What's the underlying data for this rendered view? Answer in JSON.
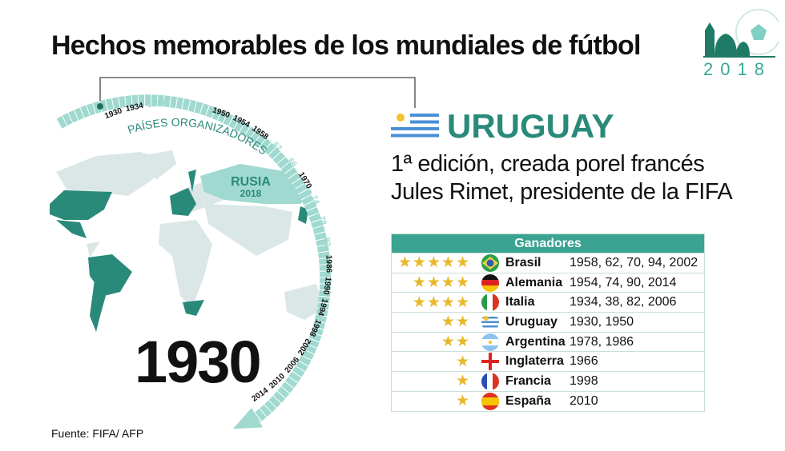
{
  "title": "Hechos memorables de los mundiales de fútbol",
  "logo": {
    "year": "2018"
  },
  "timeline": {
    "label": "PAÍSES ORGANIZADORES",
    "years": [
      {
        "t": "1930",
        "hl": true,
        "y": 1930
      },
      {
        "t": "1934",
        "hl": true,
        "y": 1934
      },
      {
        "t": "1938",
        "hl": false,
        "y": 1938
      },
      {
        "t": "1950",
        "hl": true,
        "y": 1950
      },
      {
        "t": "1954",
        "hl": true,
        "y": 1954
      },
      {
        "t": "1958",
        "hl": true,
        "y": 1958
      },
      {
        "t": "62",
        "hl": false,
        "y": 1962
      },
      {
        "t": "66",
        "hl": false,
        "y": 1966
      },
      {
        "t": "1970",
        "hl": true,
        "y": 1970
      },
      {
        "t": "74",
        "hl": false,
        "y": 1974
      },
      {
        "t": "78",
        "hl": false,
        "y": 1978
      },
      {
        "t": "82",
        "hl": false,
        "y": 1982
      },
      {
        "t": "1986",
        "hl": true,
        "y": 1986
      },
      {
        "t": "1990",
        "hl": true,
        "y": 1990
      },
      {
        "t": "1994",
        "hl": true,
        "y": 1994
      },
      {
        "t": "1998",
        "hl": true,
        "y": 1998
      },
      {
        "t": "2002",
        "hl": true,
        "y": 2002
      },
      {
        "t": "2006",
        "hl": true,
        "y": 2006
      },
      {
        "t": "2010",
        "hl": true,
        "y": 2010
      },
      {
        "t": "2014",
        "hl": true,
        "y": 2014
      }
    ],
    "selected_year": "1930"
  },
  "map": {
    "highlight_label": "RUSIA",
    "highlight_year": "2018"
  },
  "detail": {
    "country": "URUGUAY",
    "description_line1": "1ª edición, creada porel francés",
    "description_line2": "Jules Rimet, presidente de la FIFA"
  },
  "winners": {
    "header": "Ganadores",
    "rows": [
      {
        "stars": 5,
        "name": "Brasil",
        "years": "1958, 62, 70, 94, 2002",
        "flag": "brazil"
      },
      {
        "stars": 4,
        "name": "Alemania",
        "years": "1954, 74, 90, 2014",
        "flag": "germany"
      },
      {
        "stars": 4,
        "name": "Italia",
        "years": "1934, 38, 82, 2006",
        "flag": "italy"
      },
      {
        "stars": 2,
        "name": "Uruguay",
        "years": "1930, 1950",
        "flag": "uruguay"
      },
      {
        "stars": 2,
        "name": "Argentina",
        "years": "1978, 1986",
        "flag": "argentina"
      },
      {
        "stars": 1,
        "name": "Inglaterra",
        "years": "1966",
        "flag": "england"
      },
      {
        "stars": 1,
        "name": "Francia",
        "years": "1998",
        "flag": "france"
      },
      {
        "stars": 1,
        "name": "España",
        "years": "2010",
        "flag": "spain"
      }
    ]
  },
  "source": "Fuente: FIFA/ AFP",
  "colors": {
    "teal_dark": "#2a8a7a",
    "teal_light": "#9fd9d0",
    "land": "#dbe7e7",
    "star": "#e7b82b"
  }
}
